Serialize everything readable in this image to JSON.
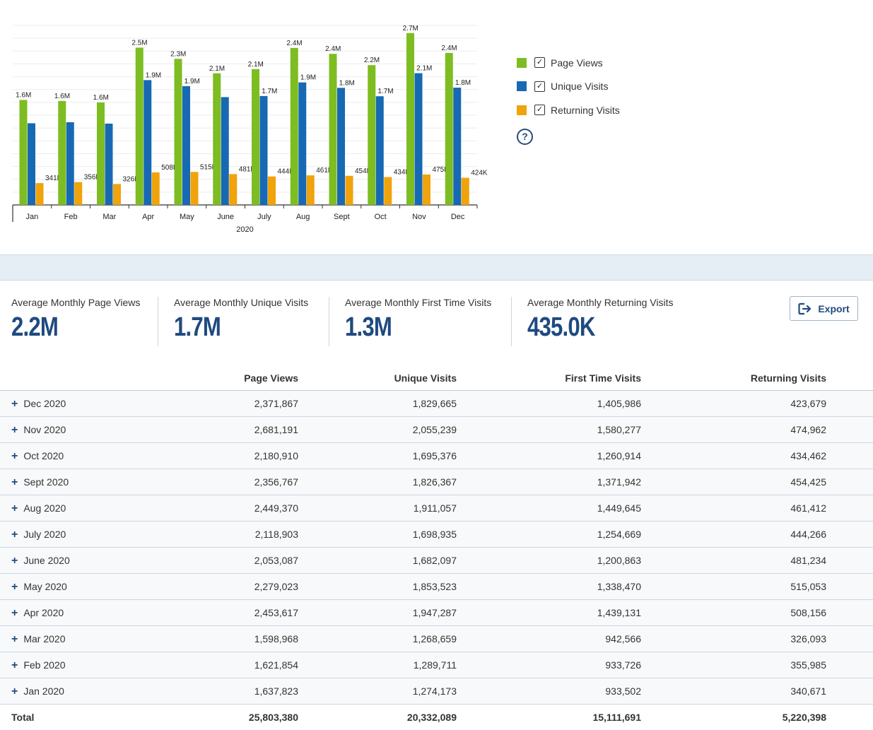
{
  "chart_data": {
    "type": "bar",
    "xlabel": "2020",
    "categories": [
      "Jan",
      "Feb",
      "Mar",
      "Apr",
      "May",
      "June",
      "July",
      "Aug",
      "Sept",
      "Oct",
      "Nov",
      "Dec"
    ],
    "series": [
      {
        "name": "Page Views",
        "color": "#7dbd21",
        "values": [
          1637823,
          1621854,
          1598968,
          2453617,
          2279023,
          2053087,
          2118903,
          2449370,
          2356767,
          2180910,
          2681191,
          2371867
        ],
        "labels": [
          "1.6M",
          "1.6M",
          "1.6M",
          "2.5M",
          "2.3M",
          "2.1M",
          "2.1M",
          "2.4M",
          "2.4M",
          "2.2M",
          "2.7M",
          "2.4M"
        ]
      },
      {
        "name": "Unique Visits",
        "color": "#1769b3",
        "values": [
          1274173,
          1289711,
          1268659,
          1947287,
          1853523,
          1682097,
          1698935,
          1911057,
          1826367,
          1695376,
          2055239,
          1829665
        ],
        "labels": [
          "",
          "",
          "",
          "1.9M",
          "1.9M",
          "",
          "1.7M",
          "1.9M",
          "1.8M",
          "1.7M",
          "2.1M",
          "1.8M"
        ]
      },
      {
        "name": "Returning Visits",
        "color": "#f0a30a",
        "values": [
          340671,
          355985,
          326093,
          508156,
          515053,
          481234,
          444266,
          461412,
          454425,
          434462,
          474962,
          423679
        ],
        "labels": [
          "341K",
          "356K",
          "326K",
          "508K",
          "515K",
          "481K",
          "444K",
          "461K",
          "454K",
          "434K",
          "475K",
          "424K"
        ]
      }
    ],
    "ylim": [
      0,
      2800000
    ],
    "grid": true,
    "legend": "right"
  },
  "legend": {
    "items": [
      {
        "label": "Page Views",
        "color": "#7dbd21",
        "check": "✓"
      },
      {
        "label": "Unique Visits",
        "color": "#1769b3",
        "check": "✓"
      },
      {
        "label": "Returning Visits",
        "color": "#f0a30a",
        "check": "✓"
      }
    ],
    "help_icon": "question-circle-icon",
    "help_glyph": "?"
  },
  "stats": [
    {
      "label": "Average Monthly Page Views",
      "value": "2.2M"
    },
    {
      "label": "Average Monthly Unique Visits",
      "value": "1.7M"
    },
    {
      "label": "Average Monthly First Time Visits",
      "value": "1.3M"
    },
    {
      "label": "Average Monthly Returning Visits",
      "value": "435.0K"
    }
  ],
  "export": {
    "label": "Export",
    "icon": "export-icon"
  },
  "table": {
    "headers": [
      "Page Views",
      "Unique Visits",
      "First Time Visits",
      "Returning Visits"
    ],
    "expand_glyph": "+",
    "rows": [
      {
        "month": "Dec 2020",
        "page_views": "2,371,867",
        "unique_visits": "1,829,665",
        "first_time": "1,405,986",
        "returning": "423,679"
      },
      {
        "month": "Nov 2020",
        "page_views": "2,681,191",
        "unique_visits": "2,055,239",
        "first_time": "1,580,277",
        "returning": "474,962"
      },
      {
        "month": "Oct 2020",
        "page_views": "2,180,910",
        "unique_visits": "1,695,376",
        "first_time": "1,260,914",
        "returning": "434,462"
      },
      {
        "month": "Sept 2020",
        "page_views": "2,356,767",
        "unique_visits": "1,826,367",
        "first_time": "1,371,942",
        "returning": "454,425"
      },
      {
        "month": "Aug 2020",
        "page_views": "2,449,370",
        "unique_visits": "1,911,057",
        "first_time": "1,449,645",
        "returning": "461,412"
      },
      {
        "month": "July 2020",
        "page_views": "2,118,903",
        "unique_visits": "1,698,935",
        "first_time": "1,254,669",
        "returning": "444,266"
      },
      {
        "month": "June 2020",
        "page_views": "2,053,087",
        "unique_visits": "1,682,097",
        "first_time": "1,200,863",
        "returning": "481,234"
      },
      {
        "month": "May 2020",
        "page_views": "2,279,023",
        "unique_visits": "1,853,523",
        "first_time": "1,338,470",
        "returning": "515,053"
      },
      {
        "month": "Apr 2020",
        "page_views": "2,453,617",
        "unique_visits": "1,947,287",
        "first_time": "1,439,131",
        "returning": "508,156"
      },
      {
        "month": "Mar 2020",
        "page_views": "1,598,968",
        "unique_visits": "1,268,659",
        "first_time": "942,566",
        "returning": "326,093"
      },
      {
        "month": "Feb 2020",
        "page_views": "1,621,854",
        "unique_visits": "1,289,711",
        "first_time": "933,726",
        "returning": "355,985"
      },
      {
        "month": "Jan 2020",
        "page_views": "1,637,823",
        "unique_visits": "1,274,173",
        "first_time": "933,502",
        "returning": "340,671"
      }
    ],
    "total": {
      "label": "Total",
      "page_views": "25,803,380",
      "unique_visits": "20,332,089",
      "first_time": "15,111,691",
      "returning": "5,220,398"
    }
  }
}
